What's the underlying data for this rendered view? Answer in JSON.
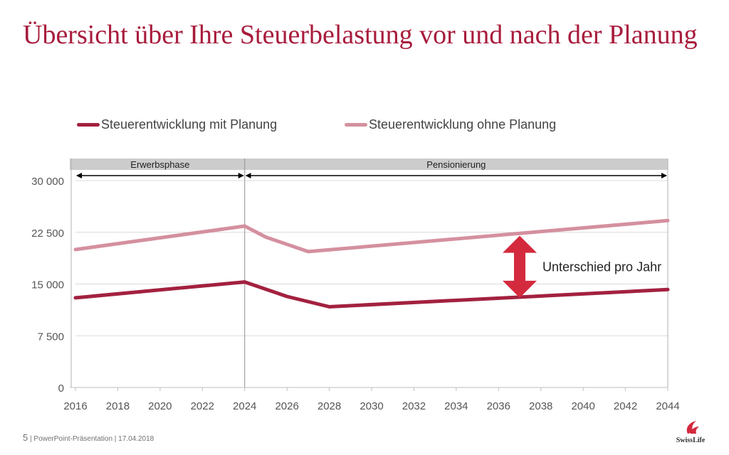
{
  "page": {
    "title": "Übersicht über Ihre Steuerbelastung vor und nach der Planung",
    "footer_page": "5",
    "footer_text": "PowerPoint-Präsentation | 17.04.2018",
    "logo_text": "SwissLife"
  },
  "colors": {
    "title": "#a81c3c",
    "series_with": "#a3213f",
    "series_without": "#d4909f",
    "arrow": "#d42a3e",
    "band": "#cccccc"
  },
  "chart_data": {
    "type": "line",
    "title": "",
    "xlabel": "",
    "ylabel": "",
    "xlim": [
      2016,
      2044
    ],
    "ylim": [
      0,
      30000
    ],
    "x_ticks": [
      2016,
      2018,
      2020,
      2022,
      2024,
      2026,
      2028,
      2030,
      2032,
      2034,
      2036,
      2038,
      2040,
      2042,
      2044
    ],
    "y_ticks": [
      0,
      7500,
      15000,
      22500,
      30000
    ],
    "x_tick_labels": [
      "2016",
      "2018",
      "2020",
      "2022",
      "2024",
      "2026",
      "2028",
      "2030",
      "2032",
      "2034",
      "2036",
      "2038",
      "2040",
      "2042",
      "2044"
    ],
    "y_tick_labels": [
      "0",
      "7 500",
      "15 000",
      "22 500",
      "30 000"
    ],
    "grid": true,
    "legend_position": "top",
    "series": [
      {
        "name": "Steuerentwicklung mit Planung",
        "color": "#a3213f",
        "points": [
          [
            2016,
            13000
          ],
          [
            2024,
            15300
          ],
          [
            2026,
            13200
          ],
          [
            2028,
            11700
          ],
          [
            2044,
            14200
          ]
        ]
      },
      {
        "name": "Steuerentwicklung ohne Planung",
        "color": "#d4909f",
        "points": [
          [
            2016,
            20000
          ],
          [
            2024,
            23400
          ],
          [
            2025,
            21800
          ],
          [
            2027,
            19700
          ],
          [
            2044,
            24200
          ]
        ]
      }
    ],
    "phases": [
      {
        "label": "Erwerbsphase",
        "from": 2016,
        "to": 2024
      },
      {
        "label": "Pensionierung",
        "from": 2024,
        "to": 2044
      }
    ],
    "annotations": [
      {
        "text": "Unterschied pro Jahr",
        "x": 2037,
        "y_top": 22000,
        "y_bottom": 13000
      }
    ]
  }
}
